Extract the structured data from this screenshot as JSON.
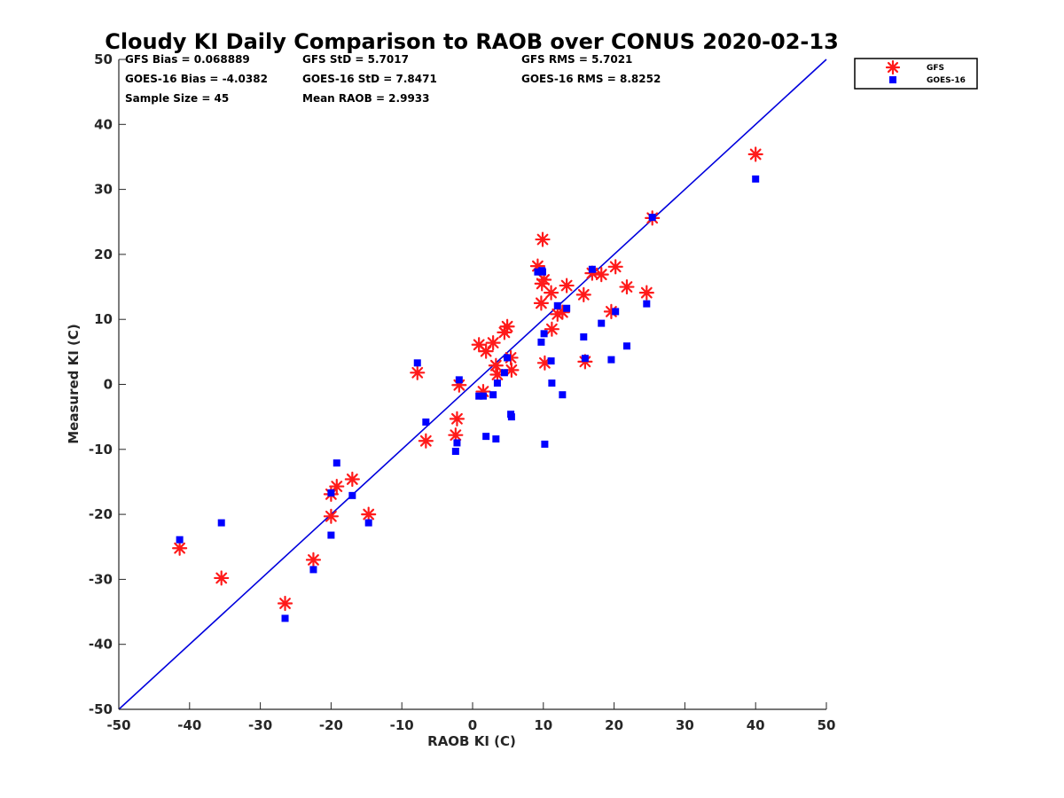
{
  "chart_data": {
    "type": "scatter",
    "title": "Cloudy KI Daily Comparison to RAOB over CONUS 2020-02-13",
    "xlabel": "RAOB KI (C)",
    "ylabel": "Measured KI (C)",
    "xlim": [
      -50,
      50
    ],
    "ylim": [
      -50,
      50
    ],
    "xticks": [
      "-50",
      "-40",
      "-30",
      "-20",
      "-10",
      "0",
      "10",
      "20",
      "30",
      "40",
      "50"
    ],
    "yticks": [
      "50",
      "40",
      "30",
      "20",
      "10",
      "0",
      "-10",
      "-20",
      "-30",
      "-40",
      "-50"
    ],
    "grid": false,
    "legend_position": "top-right (outside axes)",
    "stats": [
      "GFS Bias = 0.068889",
      "GFS StD = 5.7017",
      "GFS RMS = 5.7021",
      "GOES-16 Bias = -4.0382",
      "GOES-16 StD = 7.8471",
      "GOES-16 RMS = 8.8252",
      "Sample Size = 45",
      "Mean RAOB = 2.9933"
    ],
    "reference_line": {
      "from": [
        -50,
        -50
      ],
      "to": [
        50,
        50
      ],
      "color": "#0000dd"
    },
    "series": [
      {
        "name": "GFS",
        "marker": "asterisk",
        "color": "#ff1a1a",
        "points": [
          [
            -41.4,
            -25.2
          ],
          [
            -35.5,
            -29.8
          ],
          [
            -26.5,
            -33.7
          ],
          [
            -22.5,
            -27
          ],
          [
            -20,
            -16.9
          ],
          [
            -20,
            -20.3
          ],
          [
            -19.2,
            -15.7
          ],
          [
            -17,
            -14.6
          ],
          [
            -14.7,
            -20
          ],
          [
            -7.8,
            1.8
          ],
          [
            -6.6,
            -8.7
          ],
          [
            -2.4,
            -7.8
          ],
          [
            -2.2,
            -5.3
          ],
          [
            -1.9,
            -0.1
          ],
          [
            0.9,
            6.1
          ],
          [
            1.5,
            -1.1
          ],
          [
            1.9,
            5.1
          ],
          [
            2.9,
            6.4
          ],
          [
            3.3,
            2.9
          ],
          [
            3.5,
            1.5
          ],
          [
            4.5,
            8
          ],
          [
            4.9,
            8.9
          ],
          [
            5.4,
            4.1
          ],
          [
            5.5,
            2.2
          ],
          [
            9.2,
            18.2
          ],
          [
            9.7,
            12.5
          ],
          [
            9.8,
            15.5
          ],
          [
            9.9,
            22.3
          ],
          [
            10.1,
            16.1
          ],
          [
            10.2,
            3.3
          ],
          [
            11.1,
            14.1
          ],
          [
            11.2,
            8.5
          ],
          [
            12,
            10.8
          ],
          [
            12.7,
            11.1
          ],
          [
            13.3,
            15.2
          ],
          [
            15.7,
            13.8
          ],
          [
            15.9,
            3.5
          ],
          [
            16.9,
            17.1
          ],
          [
            18.2,
            16.9
          ],
          [
            19.6,
            11.2
          ],
          [
            20.2,
            18.1
          ],
          [
            21.8,
            15
          ],
          [
            24.6,
            14.1
          ],
          [
            25.4,
            25.6
          ],
          [
            40,
            35.4
          ]
        ]
      },
      {
        "name": "GOES-16",
        "marker": "square",
        "color": "#0000ff",
        "points": [
          [
            -41.4,
            -23.9
          ],
          [
            -35.5,
            -21.3
          ],
          [
            -26.5,
            -36
          ],
          [
            -22.5,
            -28.5
          ],
          [
            -20,
            -16.7
          ],
          [
            -20,
            -23.2
          ],
          [
            -19.2,
            -12.1
          ],
          [
            -17,
            -17.1
          ],
          [
            -14.7,
            -21.3
          ],
          [
            -7.8,
            3.3
          ],
          [
            -6.6,
            -5.8
          ],
          [
            -2.4,
            -10.3
          ],
          [
            -2.2,
            -9
          ],
          [
            -1.9,
            0.7
          ],
          [
            0.9,
            -1.8
          ],
          [
            1.5,
            -1.8
          ],
          [
            1.9,
            -8
          ],
          [
            2.9,
            -1.6
          ],
          [
            3.3,
            -8.4
          ],
          [
            3.5,
            0.2
          ],
          [
            4.5,
            1.8
          ],
          [
            4.9,
            4.1
          ],
          [
            5.4,
            -4.6
          ],
          [
            5.5,
            -5
          ],
          [
            9.2,
            17.3
          ],
          [
            9.7,
            6.5
          ],
          [
            9.8,
            17.5
          ],
          [
            9.9,
            17.3
          ],
          [
            10.1,
            7.8
          ],
          [
            10.2,
            -9.2
          ],
          [
            11.1,
            3.6
          ],
          [
            11.2,
            0.2
          ],
          [
            12,
            12.1
          ],
          [
            12.7,
            -1.6
          ],
          [
            13.3,
            11.7
          ],
          [
            15.7,
            7.3
          ],
          [
            15.9,
            4
          ],
          [
            16.9,
            17.7
          ],
          [
            18.2,
            9.4
          ],
          [
            19.6,
            3.8
          ],
          [
            20.2,
            11.2
          ],
          [
            21.8,
            5.9
          ],
          [
            24.6,
            12.4
          ],
          [
            25.4,
            25.7
          ],
          [
            40,
            31.6
          ]
        ]
      }
    ]
  }
}
